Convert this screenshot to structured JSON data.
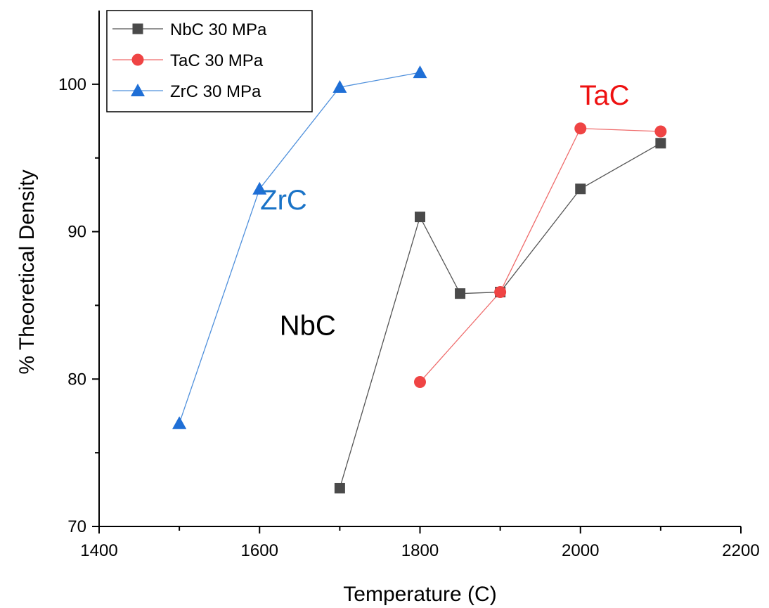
{
  "chart_data": {
    "type": "line",
    "xlabel": "Temperature (C)",
    "ylabel": "% Theoretical Density",
    "xlim": [
      1400,
      2200
    ],
    "ylim": [
      70,
      105
    ],
    "xticks": [
      1400,
      1600,
      1800,
      2000,
      2200
    ],
    "yticks": [
      70,
      80,
      90,
      100
    ],
    "grid": false,
    "legend": "top-left",
    "series": [
      {
        "name": "NbC 30 MPa",
        "marker": "square",
        "color": "#4a4a4a",
        "points": [
          [
            1700,
            72.6
          ],
          [
            1800,
            91.0
          ],
          [
            1850,
            85.8
          ],
          [
            1900,
            85.9
          ],
          [
            2000,
            92.9
          ],
          [
            2100,
            96.0
          ]
        ]
      },
      {
        "name": "TaC 30 MPa",
        "marker": "circle",
        "color": "#ef4444",
        "points": [
          [
            1800,
            79.8
          ],
          [
            1900,
            85.9
          ],
          [
            2000,
            97.0
          ],
          [
            2100,
            96.8
          ]
        ]
      },
      {
        "name": "ZrC 30 MPa",
        "marker": "triangle",
        "color": "#1f6fd6",
        "points": [
          [
            1500,
            77.0
          ],
          [
            1600,
            92.9
          ],
          [
            1700,
            99.8
          ],
          [
            1800,
            100.8
          ]
        ]
      }
    ],
    "annotations": [
      {
        "text": "ZrC",
        "x": 1630,
        "y": 91.5,
        "color": "#1a73c7"
      },
      {
        "text": "NbC",
        "x": 1660,
        "y": 83.0,
        "color": "#000000"
      },
      {
        "text": "TaC",
        "x": 2030,
        "y": 98.6,
        "color": "#ee1111"
      }
    ]
  }
}
